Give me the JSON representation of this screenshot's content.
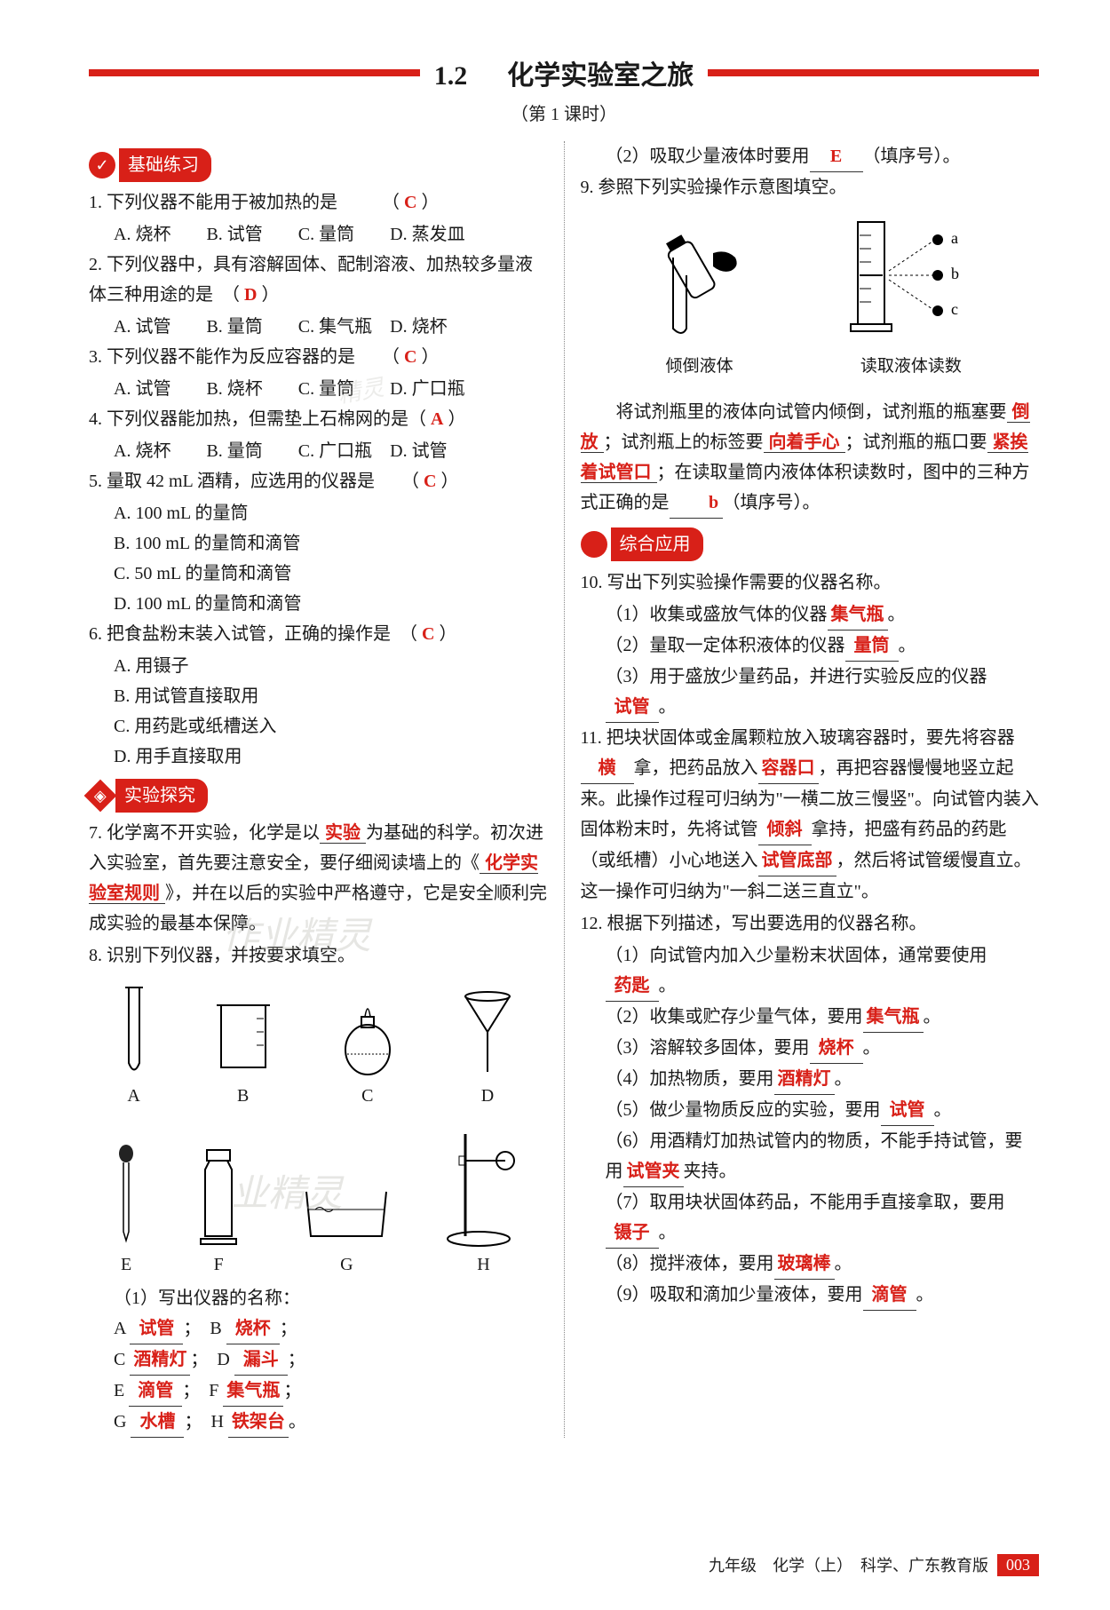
{
  "header": {
    "section_number": "1.2",
    "title": "化学实验室之旅",
    "subtitle": "（第 1 课时）",
    "accent_color": "#d82018"
  },
  "sections": {
    "basic": {
      "label": "基础练习",
      "icon": "✓"
    },
    "experiment": {
      "label": "实验探究",
      "icon": "◈"
    },
    "application": {
      "label": "综合应用"
    }
  },
  "left": {
    "q1": {
      "num": "1.",
      "text": "下列仪器不能用于被加热的是",
      "answer": "C",
      "opts": "A. 烧杯　　B. 试管　　C. 量筒　　D. 蒸发皿"
    },
    "q2": {
      "num": "2.",
      "text": "下列仪器中，具有溶解固体、配制溶液、加热较多量液体三种用途的是",
      "answer": "D",
      "opts": "A. 试管　　B. 量筒　　C. 集气瓶　D. 烧杯"
    },
    "q3": {
      "num": "3.",
      "text": "下列仪器不能作为反应容器的是",
      "answer": "C",
      "opts": "A. 试管　　B. 烧杯　　C. 量筒　　D. 广口瓶"
    },
    "q4": {
      "num": "4.",
      "text": "下列仪器能加热，但需垫上石棉网的是（",
      "answer": "A",
      "opts": "A. 烧杯　　B. 量筒　　C. 广口瓶　D. 试管"
    },
    "q5": {
      "num": "5.",
      "text": "量取 42 mL 酒精，应选用的仪器是",
      "answer": "C",
      "opts": [
        "A. 100 mL 的量筒",
        "B. 100 mL 的量筒和滴管",
        "C. 50 mL 的量筒和滴管",
        "D. 100 mL 的量筒和滴管"
      ]
    },
    "q6": {
      "num": "6.",
      "text": "把食盐粉末装入试管，正确的操作是",
      "answer": "C",
      "opts": [
        "A. 用镊子",
        "B. 用试管直接取用",
        "C. 用药匙或纸槽送入",
        "D. 用手直接取用"
      ]
    },
    "q7": {
      "num": "7.",
      "pre": "化学离不开实验，化学是以",
      "a1": "实验",
      "mid1": "为基础的科学。初次进入实验室，首先要注意安全，要仔细阅读墙上的《",
      "a2": "化学实验室规则",
      "post": "》，并在以后的实验中严格遵守，它是安全顺利完成实验的最基本保障。"
    },
    "q8": {
      "num": "8.",
      "text": "识别下列仪器，并按要求填空。",
      "labels": {
        "A": "A",
        "B": "B",
        "C": "C",
        "D": "D",
        "E": "E",
        "F": "F",
        "G": "G",
        "H": "H"
      },
      "sub1": "（1）写出仪器的名称：",
      "names": {
        "A": "试管",
        "B": "烧杯",
        "C": "酒精灯",
        "D": "漏斗",
        "E": "滴管",
        "F": "集气瓶",
        "G": "水槽",
        "H": "铁架台"
      }
    }
  },
  "right": {
    "q8_2": {
      "pre": "（2）吸取少量液体时要用",
      "ans": "E",
      "post": "（填序号）。"
    },
    "q9": {
      "num": "9.",
      "text": "参照下列实验操作示意图填空。",
      "d1_label": "倾倒液体",
      "d2_label": "读取液体读数",
      "marks": {
        "a": "a",
        "b": "b",
        "c": "c"
      },
      "fill_pre": "将试剂瓶里的液体向试管内倾倒，试剂瓶的瓶塞要",
      "a1": "倒放",
      "m1": "；试剂瓶上的标签要",
      "a2": "向着手心",
      "m2": "；试剂瓶的瓶口要",
      "a3": "紧挨着试管口",
      "m3": "；在读取量筒内液体体积读数时，图中的三种方式正确的是",
      "a4": "b",
      "post": "（填序号）。"
    },
    "q10": {
      "num": "10.",
      "text": "写出下列实验操作需要的仪器名称。",
      "s1_pre": "（1）收集或盛放气体的仪器",
      "s1_ans": "集气瓶",
      "s1_post": "。",
      "s2_pre": "（2）量取一定体积液体的仪器",
      "s2_ans": "量筒",
      "s2_post": "。",
      "s3_pre": "（3）用于盛放少量药品，并进行实验反应的仪器",
      "s3_ans": "试管",
      "s3_post": "。"
    },
    "q11": {
      "num": "11.",
      "pre": "把块状固体或金属颗粒放入玻璃容器时，要先将容器",
      "a1": "横",
      "m1": "拿，把药品放入",
      "a2": "容器口",
      "m2": "，再把容器慢慢地竖立起来。此操作过程可归纳为\"一横二放三慢竖\"。向试管内装入固体粉末时，先将试管",
      "a3": "倾斜",
      "m3": "拿持，把盛有药品的药匙（或纸槽）小心地送入",
      "a4": "试管底部",
      "post": "，然后将试管缓慢直立。这一操作可归纳为\"一斜二送三直立\"。"
    },
    "q12": {
      "num": "12.",
      "text": "根据下列描述，写出要选用的仪器名称。",
      "items": [
        {
          "pre": "（1）向试管内加入少量粉末状固体，通常要使用",
          "ans": "药匙",
          "post": "。"
        },
        {
          "pre": "（2）收集或贮存少量气体，要用",
          "ans": "集气瓶",
          "post": "。"
        },
        {
          "pre": "（3）溶解较多固体，要用",
          "ans": "烧杯",
          "post": "。"
        },
        {
          "pre": "（4）加热物质，要用",
          "ans": "酒精灯",
          "post": "。"
        },
        {
          "pre": "（5）做少量物质反应的实验，要用",
          "ans": "试管",
          "post": "。"
        },
        {
          "pre": "（6）用酒精灯加热试管内的物质，不能手持试管，要用",
          "ans": "试管夹",
          "post": "夹持。"
        },
        {
          "pre": "（7）取用块状固体药品，不能用手直接拿取，要用",
          "ans": "镊子",
          "post": "。"
        },
        {
          "pre": "（8）搅拌液体，要用",
          "ans": "玻璃棒",
          "post": "。"
        },
        {
          "pre": "（9）吸取和滴加少量液体，要用",
          "ans": "滴管",
          "post": "。"
        }
      ]
    }
  },
  "footer": {
    "text": "九年级　化学（上）　科学、广东教育版",
    "page": "003"
  },
  "watermarks": {
    "w1": "作业精灵",
    "w2": "业精灵",
    "w3": "精灵"
  }
}
